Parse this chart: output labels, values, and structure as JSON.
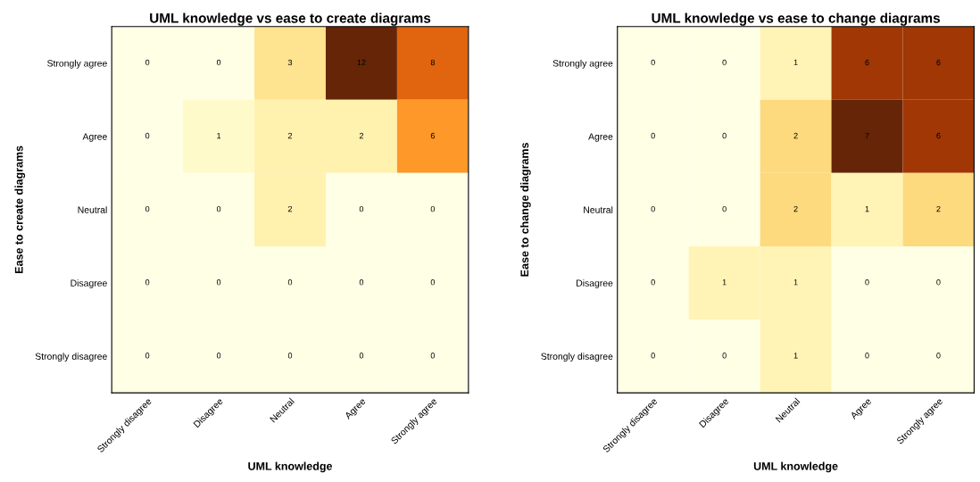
{
  "chart_data": [
    {
      "type": "heatmap",
      "title": "UML knowledge vs ease to create diagrams",
      "xlabel": "UML knowledge",
      "ylabel": "Ease to create diagrams",
      "categories": [
        "Strongly disagree",
        "Disagree",
        "Neutral",
        "Agree",
        "Strongly agree"
      ],
      "y_categories": [
        "Strongly agree",
        "Agree",
        "Neutral",
        "Disagree",
        "Strongly disagree"
      ],
      "cells": [
        [
          0,
          0,
          3,
          12,
          8
        ],
        [
          0,
          1,
          2,
          2,
          6
        ],
        [
          0,
          0,
          2,
          0,
          0
        ],
        [
          0,
          0,
          0,
          0,
          0
        ],
        [
          0,
          0,
          0,
          0,
          0
        ]
      ],
      "data_labels": true,
      "grid": false
    },
    {
      "type": "heatmap",
      "title": "UML knowledge vs ease to change diagrams",
      "xlabel": "UML knowledge",
      "ylabel": "Ease to change diagrams",
      "categories": [
        "Strongly disagree",
        "Disagree",
        "Neutral",
        "Agree",
        "Strongly agree"
      ],
      "y_categories": [
        "Strongly agree",
        "Agree",
        "Neutral",
        "Disagree",
        "Strongly disagree"
      ],
      "cells": [
        [
          0,
          0,
          1,
          6,
          6
        ],
        [
          0,
          0,
          2,
          7,
          6
        ],
        [
          0,
          0,
          2,
          1,
          2
        ],
        [
          0,
          1,
          1,
          0,
          0
        ],
        [
          0,
          0,
          1,
          0,
          0
        ]
      ],
      "data_labels": true,
      "grid": false
    }
  ]
}
